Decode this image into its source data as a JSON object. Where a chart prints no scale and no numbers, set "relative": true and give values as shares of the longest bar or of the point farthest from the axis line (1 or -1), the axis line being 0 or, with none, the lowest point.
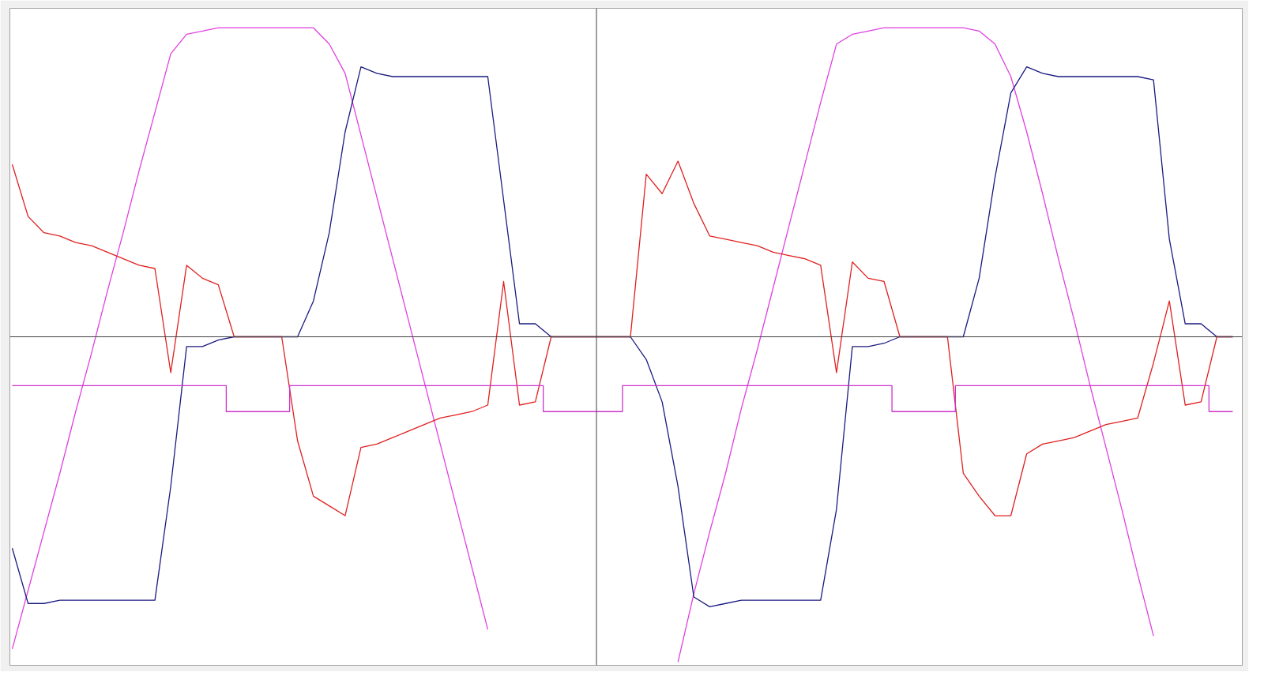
{
  "chart_data": {
    "type": "line",
    "relative": true,
    "grid": false,
    "line_style": "solid",
    "marker": "none",
    "categories": [
      null,
      null,
      null,
      null,
      null,
      null,
      null,
      null,
      null,
      null,
      null,
      null,
      null,
      null,
      null,
      null,
      null,
      null,
      null,
      null,
      null,
      null,
      null,
      null,
      null,
      null,
      null,
      null,
      null,
      null,
      null,
      null,
      null,
      null,
      null,
      null,
      null,
      null,
      null,
      null,
      null,
      null,
      null,
      null,
      null,
      null,
      null,
      null,
      null,
      null,
      null,
      null,
      null,
      null,
      null,
      null,
      null,
      null,
      null,
      null,
      null,
      null,
      null,
      null,
      null,
      null,
      null,
      null,
      null,
      null,
      null,
      null,
      null,
      null,
      null,
      null,
      null,
      null
    ],
    "series": [
      {
        "color": "#e040e0",
        "values": [
          -0.96,
          -0.78,
          -0.6,
          -0.42,
          -0.23,
          -0.05,
          0.14,
          0.32,
          0.51,
          0.69,
          0.87,
          0.93,
          0.94,
          0.95,
          0.95,
          0.95,
          0.95,
          0.95,
          0.95,
          0.95,
          0.9,
          0.81,
          0.62,
          0.43,
          0.24,
          0.05,
          -0.14,
          -0.33,
          -0.52,
          -0.71,
          -0.9,
          null,
          null,
          null,
          null,
          null,
          null,
          null,
          null,
          null,
          null,
          null,
          -1.0,
          -0.79,
          -0.6,
          -0.42,
          -0.22,
          -0.04,
          0.15,
          0.34,
          0.53,
          0.72,
          0.9,
          0.93,
          0.94,
          0.95,
          0.95,
          0.95,
          0.95,
          0.95,
          0.95,
          0.94,
          0.9,
          0.8,
          0.63,
          0.44,
          0.24,
          0.05,
          -0.15,
          -0.34,
          -0.53,
          -0.73,
          -0.92,
          null,
          null,
          null,
          null,
          null
        ]
      },
      {
        "color": "#1a1a80",
        "values": [
          -0.65,
          -0.82,
          -0.82,
          -0.81,
          -0.81,
          -0.81,
          -0.81,
          -0.81,
          -0.81,
          -0.81,
          -0.46,
          -0.03,
          -0.03,
          -0.01,
          0.0,
          0.0,
          0.0,
          0.0,
          0.0,
          0.11,
          0.32,
          0.63,
          0.83,
          0.81,
          0.8,
          0.8,
          0.8,
          0.8,
          0.8,
          0.8,
          0.8,
          0.42,
          0.04,
          0.04,
          0.0,
          0.0,
          0.0,
          0.0,
          0.0,
          0.0,
          -0.07,
          -0.2,
          -0.46,
          -0.8,
          -0.83,
          -0.82,
          -0.81,
          -0.81,
          -0.81,
          -0.81,
          -0.81,
          -0.81,
          -0.53,
          -0.03,
          -0.03,
          -0.02,
          0.0,
          0.0,
          0.0,
          0.0,
          0.0,
          0.18,
          0.49,
          0.75,
          0.83,
          0.81,
          0.8,
          0.8,
          0.8,
          0.8,
          0.8,
          0.8,
          0.79,
          0.3,
          0.04,
          0.04,
          0.0,
          0.0
        ]
      },
      {
        "color": "#e02020",
        "values": [
          0.53,
          0.37,
          0.32,
          0.31,
          0.29,
          0.28,
          0.26,
          0.24,
          0.22,
          0.21,
          -0.11,
          0.22,
          0.18,
          0.16,
          0.0,
          0.0,
          0.0,
          0.0,
          -0.32,
          -0.49,
          -0.52,
          -0.55,
          -0.34,
          -0.33,
          -0.31,
          -0.29,
          -0.27,
          -0.25,
          -0.24,
          -0.23,
          -0.21,
          0.17,
          -0.21,
          -0.2,
          0.0,
          0.0,
          0.0,
          0.0,
          0.0,
          0.0,
          0.5,
          0.44,
          0.54,
          0.41,
          0.31,
          0.3,
          0.29,
          0.28,
          0.26,
          0.25,
          0.24,
          0.22,
          -0.11,
          0.23,
          0.18,
          0.17,
          0.0,
          0.0,
          0.0,
          0.0,
          -0.42,
          -0.49,
          -0.55,
          -0.55,
          -0.36,
          -0.33,
          -0.32,
          -0.31,
          -0.29,
          -0.27,
          -0.26,
          -0.25,
          -0.08,
          0.11,
          -0.21,
          -0.2,
          0.0,
          0.0
        ]
      },
      {
        "type": "step",
        "color": "#cc33cc",
        "values": [
          -0.15,
          -0.15,
          -0.15,
          -0.15,
          -0.15,
          -0.15,
          -0.15,
          -0.15,
          -0.15,
          -0.15,
          -0.15,
          -0.15,
          -0.15,
          -0.15,
          -0.23,
          -0.23,
          -0.23,
          -0.23,
          -0.15,
          -0.15,
          -0.15,
          -0.15,
          -0.15,
          -0.15,
          -0.15,
          -0.15,
          -0.15,
          -0.15,
          -0.15,
          -0.15,
          -0.15,
          -0.15,
          -0.15,
          -0.15,
          -0.23,
          -0.23,
          -0.23,
          -0.23,
          -0.23,
          -0.15,
          -0.15,
          -0.15,
          -0.15,
          -0.15,
          -0.15,
          -0.15,
          -0.15,
          -0.15,
          -0.15,
          -0.15,
          -0.15,
          -0.15,
          -0.15,
          -0.15,
          -0.15,
          -0.15,
          -0.23,
          -0.23,
          -0.23,
          -0.23,
          -0.15,
          -0.15,
          -0.15,
          -0.15,
          -0.15,
          -0.15,
          -0.15,
          -0.15,
          -0.15,
          -0.15,
          -0.15,
          -0.15,
          -0.15,
          -0.15,
          -0.15,
          -0.15,
          -0.23,
          -0.23
        ]
      }
    ],
    "ref_lines": [
      {
        "axis": "y",
        "value": 0,
        "color": "#404040"
      }
    ]
  }
}
